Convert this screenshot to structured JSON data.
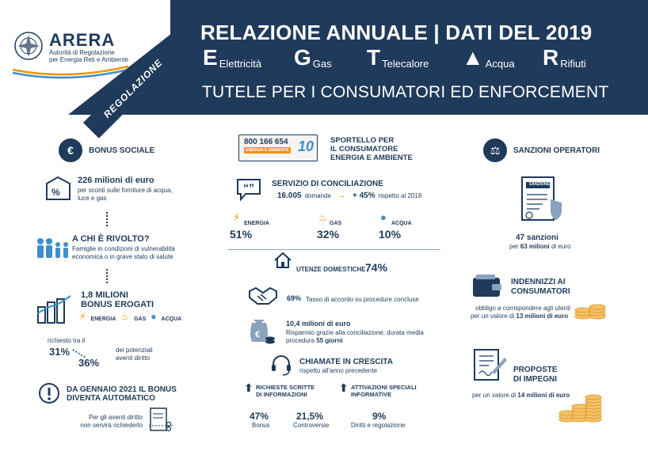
{
  "header": {
    "logo_name": "ARERA",
    "logo_sub1": "Autorità di Regolazione",
    "logo_sub2": "per Energia Reti e Ambiente",
    "banner": "REGOLAZIONE",
    "title": "RELAZIONE ANNUALE | DATI DEL 2019",
    "subtitle": "TUTELE PER I CONSUMATORI ED ENFORCEMENT",
    "categories": [
      {
        "icon": "electricity-icon",
        "label": "Elettricità"
      },
      {
        "icon": "gas-icon",
        "label": "Gas"
      },
      {
        "icon": "district-heating-icon",
        "label": "Telecalore"
      },
      {
        "icon": "water-icon",
        "label": "Acqua"
      },
      {
        "icon": "waste-icon",
        "label": "Rifiuti"
      }
    ]
  },
  "bonus": {
    "title": "BONUS SOCIALE",
    "amount": "226 milioni di euro",
    "amount_desc1": "per sconti sulle forniture di acqua,",
    "amount_desc2": "luce e gas",
    "target_title": "A CHI È RIVOLTO?",
    "target_desc1": "Famiglie in condizioni di vulnerabilità",
    "target_desc2": "economica o in grave stato di salute",
    "erogati_value": "1,8 MILIONI",
    "erogati_label": "BONUS EROGATI",
    "erogati_types": [
      "ENERGIA",
      "GAS",
      "ACQUA"
    ],
    "richiesto_label": "richiesto tra il",
    "pct_low": "31%",
    "pct_high": "36%",
    "potenziali1": "dei potenziali",
    "potenziali2": "aventi diritto",
    "auto_title1": "DA GENNAIO 2021 IL BONUS",
    "auto_title2": "DIVENTA AUTOMATICO",
    "auto_desc1": "Per gli aventi diritto",
    "auto_desc2": "non servirà richiederlo"
  },
  "sportello": {
    "phone": "800 166 654",
    "phone_sub": "ENERGIA E AMBIENTE",
    "badge": "10",
    "title1": "SPORTELLO PER",
    "title2": "IL CONSUMATORE",
    "title3": "ENERGIA E AMBIENTE",
    "concil_title": "SERVIZIO DI CONCILIAZIONE",
    "concil_count": "16.005",
    "concil_count_label": "domande",
    "concil_growth": "+ 45%",
    "concil_growth_label": "rispetto al 2018",
    "shares": [
      {
        "label": "ENERGIA",
        "value": "51%"
      },
      {
        "label": "GAS",
        "value": "32%"
      },
      {
        "label": "ACQUA",
        "value": "10%"
      }
    ],
    "utenze_label": "UTENZE DOMESTICHE",
    "utenze_value": "74%",
    "accordo_value": "69%",
    "accordo_label": "Tasso di accordo su procedure concluse",
    "risparmio_value": "10,4 milioni di euro",
    "risparmio_desc1": "Risparmio grazie alla conciliazione; durata media",
    "risparmio_desc2": "procedura",
    "risparmio_days": "55 giorni",
    "chiamate_title": "CHIAMATE IN CRESCITA",
    "chiamate_sub": "rispetto all'anno precedente",
    "richieste_title1": "RICHIESTE SCRITTE",
    "richieste_title2": "DI INFORMAZIONI",
    "attivazioni_title1": "ATTIVAZIONI SPECIALI",
    "attivazioni_title2": "INFORMATIVE",
    "stats": [
      {
        "value": "47%",
        "label": "Bonus"
      },
      {
        "value": "21,5%",
        "label": "Controversie"
      },
      {
        "value": "9%",
        "label": "Diritti e regolazione"
      }
    ]
  },
  "sanzioni": {
    "title": "SANZIONI OPERATORI",
    "doc_label": "SANZIONE",
    "count": "47 sanzioni",
    "count_desc_pre": "per",
    "count_desc_value": "63 milioni",
    "count_desc_post": "di euro",
    "indennizzi_title1": "INDENNIZZI AI",
    "indennizzi_title2": "CONSUMATORI",
    "indennizzi_desc1": "obbligo a corrispondere agli utenti",
    "indennizzi_desc2_pre": "per un valore di",
    "indennizzi_desc2_value": "13 milioni di euro",
    "proposte_title1": "PROPOSTE",
    "proposte_title2": "DI IMPEGNI",
    "proposte_desc_pre": "per un valore di",
    "proposte_desc_value": "14 milioni di euro"
  },
  "colors": {
    "navy": "#1f3a5a",
    "orange": "#f39200",
    "light_blue": "#3d8ec9",
    "background": "#ffffff"
  }
}
